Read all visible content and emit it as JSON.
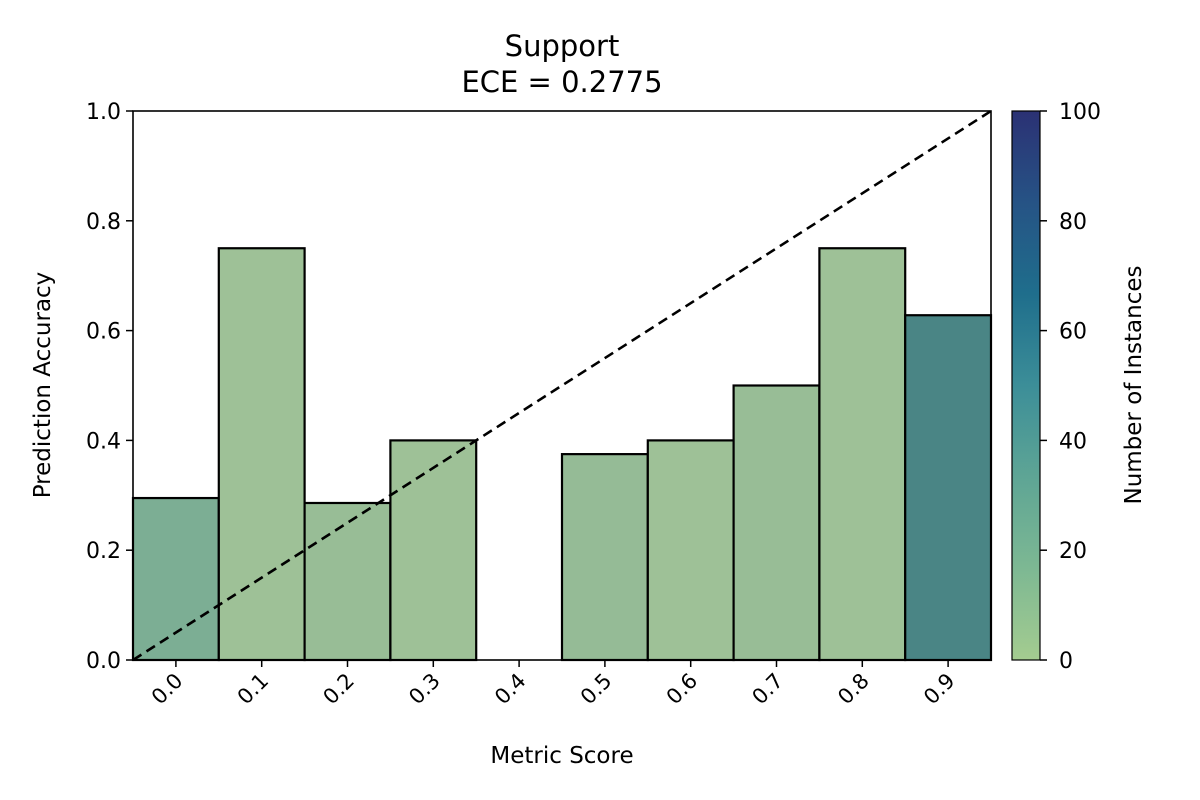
{
  "chart_data": {
    "type": "bar",
    "title": "Support",
    "subtitle": "ECE = 0.2775",
    "xlabel": "Metric Score",
    "ylabel": "Prediction Accuracy",
    "categories": [
      "0.0",
      "0.1",
      "0.2",
      "0.3",
      "0.4",
      "0.5",
      "0.6",
      "0.7",
      "0.8",
      "0.9"
    ],
    "values": [
      0.295,
      0.75,
      0.286,
      0.4,
      null,
      0.375,
      0.4,
      0.5,
      0.75,
      0.628
    ],
    "counts": [
      20,
      5,
      9,
      5,
      0,
      8,
      5,
      10,
      4,
      45
    ],
    "bar_colors": [
      "#7cae94",
      "#9ec197",
      "#98bd96",
      "#9ec197",
      null,
      "#95bb96",
      "#9ec197",
      "#98bd96",
      "#9ec197",
      "#4a8585"
    ],
    "xlim": [
      -0.05,
      0.95
    ],
    "ylim": [
      0,
      1.0
    ],
    "yticks": [
      "0.0",
      "0.2",
      "0.4",
      "0.6",
      "0.8",
      "1.0"
    ],
    "diagonal": "perfect calibration (dashed)",
    "colorbar": {
      "label": "Number of Instances",
      "min": 0,
      "max": 100,
      "ticks": [
        "0",
        "20",
        "40",
        "60",
        "80",
        "100"
      ],
      "colormap": [
        "#a4cc90",
        "#7db893",
        "#5ea595",
        "#3c8e98",
        "#1f6e8c",
        "#265385",
        "#2b3174"
      ]
    },
    "grid": false
  }
}
